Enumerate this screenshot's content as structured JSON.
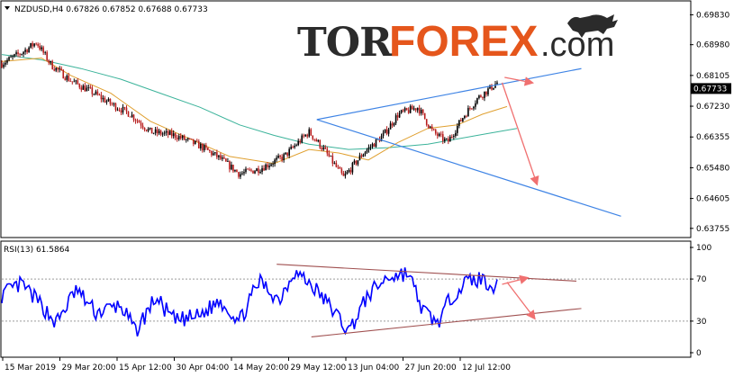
{
  "header": {
    "symbol_info": "NZDUSD,H4  0.67826  0.67852  0.67688  0.67733",
    "rsi_label": "RSI(13) 61.5864"
  },
  "brand": {
    "part1": "TOR",
    "part2": "FOREX",
    "part3": ".com"
  },
  "colors": {
    "price": "#000000",
    "bull": "#000000",
    "bear": "#b71c1c",
    "ma_fast": "#e0a030",
    "ma_slow": "#3bb39a",
    "channel": "#3f84e5",
    "arrow": "#f07070",
    "rsi": "#0000ff",
    "rsi_trend": "#a05050",
    "last_price_bg": "#000000"
  },
  "chart_data": [
    {
      "type": "candlestick",
      "title": "NZDUSD,H4",
      "ylim": [
        0.6352,
        0.702
      ],
      "y_ticks": [
        0.6983,
        0.6898,
        0.68105,
        0.6723,
        0.66355,
        0.6548,
        0.64605,
        0.63755
      ],
      "y_tick_labels": [
        "0.69830",
        "0.68980",
        "0.68105",
        "0.67230",
        "0.66355",
        "0.65480",
        "0.64605",
        "0.63755"
      ],
      "last_price": 0.67733,
      "last_price_label": "0.67733",
      "x_labels": [
        "15 Mar 2019",
        "29 Mar 20:00",
        "15 Apr 12:00",
        "30 Apr 04:00",
        "14 May 20:00",
        "29 May 12:00",
        "13 Jun 04:00",
        "27 Jun 20:00",
        "12 Jul 12:00"
      ],
      "path": [
        [
          0,
          0.6845
        ],
        [
          0.04,
          0.6875
        ],
        [
          0.07,
          0.6905
        ],
        [
          0.1,
          0.684
        ],
        [
          0.14,
          0.6795
        ],
        [
          0.18,
          0.6765
        ],
        [
          0.22,
          0.673
        ],
        [
          0.26,
          0.67
        ],
        [
          0.3,
          0.665
        ],
        [
          0.35,
          0.664
        ],
        [
          0.4,
          0.661
        ],
        [
          0.44,
          0.6575
        ],
        [
          0.48,
          0.653
        ],
        [
          0.52,
          0.6545
        ],
        [
          0.57,
          0.658
        ],
        [
          0.62,
          0.665
        ],
        [
          0.65,
          0.66
        ],
        [
          0.69,
          0.652
        ],
        [
          0.73,
          0.659
        ],
        [
          0.77,
          0.664
        ],
        [
          0.8,
          0.67
        ],
        [
          0.84,
          0.672
        ],
        [
          0.87,
          0.665
        ],
        [
          0.9,
          0.662
        ],
        [
          0.93,
          0.669
        ],
        [
          0.96,
          0.6745
        ],
        [
          1.0,
          0.679
        ]
      ],
      "ma_fast_path": [
        [
          0,
          0.685
        ],
        [
          0.08,
          0.686
        ],
        [
          0.14,
          0.681
        ],
        [
          0.22,
          0.676
        ],
        [
          0.3,
          0.668
        ],
        [
          0.38,
          0.663
        ],
        [
          0.46,
          0.658
        ],
        [
          0.55,
          0.656
        ],
        [
          0.62,
          0.66
        ],
        [
          0.68,
          0.659
        ],
        [
          0.74,
          0.657
        ],
        [
          0.8,
          0.662
        ],
        [
          0.86,
          0.666
        ],
        [
          0.92,
          0.667
        ],
        [
          0.97,
          0.67
        ],
        [
          1.02,
          0.6722
        ]
      ],
      "ma_slow_path": [
        [
          0,
          0.687
        ],
        [
          0.08,
          0.6855
        ],
        [
          0.16,
          0.683
        ],
        [
          0.24,
          0.68
        ],
        [
          0.32,
          0.676
        ],
        [
          0.4,
          0.672
        ],
        [
          0.48,
          0.667
        ],
        [
          0.55,
          0.664
        ],
        [
          0.62,
          0.6615
        ],
        [
          0.7,
          0.66
        ],
        [
          0.78,
          0.6605
        ],
        [
          0.86,
          0.6615
        ],
        [
          0.92,
          0.663
        ],
        [
          0.98,
          0.6645
        ],
        [
          1.04,
          0.666
        ]
      ],
      "channel_apex": [
        0.636,
        0.6685
      ],
      "channel_upper_end": [
        1.17,
        0.683
      ],
      "channel_lower_end": [
        1.25,
        0.641
      ],
      "arrow_1": {
        "from": [
          1.015,
          0.6805
        ],
        "to": [
          1.07,
          0.679
        ]
      },
      "arrow_2": {
        "from": [
          1.01,
          0.679
        ],
        "to": [
          1.08,
          0.6503
        ]
      }
    },
    {
      "type": "line",
      "title": "RSI(13)",
      "value": 61.5864,
      "ylim": [
        0,
        100
      ],
      "y_ticks": [
        100,
        70,
        30,
        0
      ],
      "y_tick_labels": [
        "100",
        "70",
        "30",
        "0"
      ],
      "levels": [
        70,
        30
      ],
      "rsi_path": [
        [
          0,
          55
        ],
        [
          0.04,
          65
        ],
        [
          0.08,
          45
        ],
        [
          0.11,
          28
        ],
        [
          0.15,
          60
        ],
        [
          0.19,
          38
        ],
        [
          0.24,
          45
        ],
        [
          0.27,
          20
        ],
        [
          0.31,
          52
        ],
        [
          0.35,
          30
        ],
        [
          0.4,
          35
        ],
        [
          0.44,
          50
        ],
        [
          0.48,
          30
        ],
        [
          0.52,
          68
        ],
        [
          0.56,
          50
        ],
        [
          0.59,
          78
        ],
        [
          0.63,
          62
        ],
        [
          0.67,
          40
        ],
        [
          0.7,
          20
        ],
        [
          0.74,
          55
        ],
        [
          0.78,
          72
        ],
        [
          0.82,
          76
        ],
        [
          0.85,
          40
        ],
        [
          0.88,
          28
        ],
        [
          0.91,
          55
        ],
        [
          0.94,
          68
        ],
        [
          0.97,
          70
        ],
        [
          1.0,
          61.6
        ]
      ],
      "rsi_upper_line": {
        "from": [
          0.555,
          84
        ],
        "to": [
          1.16,
          68
        ]
      },
      "rsi_lower_line": {
        "from": [
          0.625,
          15
        ],
        "to": [
          1.17,
          42
        ]
      },
      "arrow_1": {
        "from": [
          1.01,
          65
        ],
        "to": [
          1.06,
          71
        ]
      },
      "arrow_2": {
        "from": [
          1.02,
          67
        ],
        "to": [
          1.075,
          33
        ]
      }
    }
  ]
}
